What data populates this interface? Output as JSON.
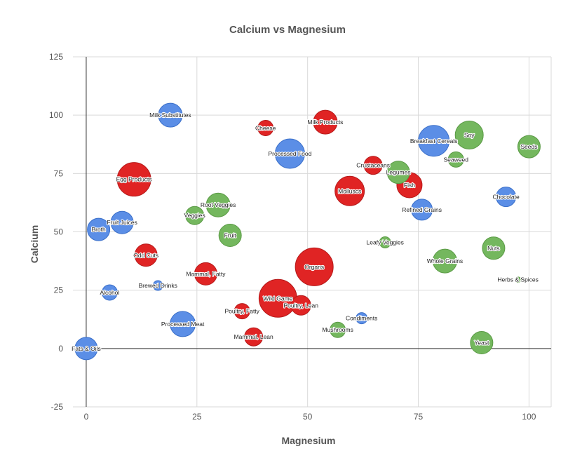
{
  "chart_data": {
    "type": "scatter",
    "variant": "bubble",
    "title": "Calcium vs Magnesium",
    "xlabel": "Magnesium",
    "ylabel": "Calcium",
    "xlim": [
      -3,
      105
    ],
    "ylim": [
      -25,
      125
    ],
    "xticks": [
      0,
      25,
      50,
      75,
      100
    ],
    "yticks": [
      -25,
      0,
      25,
      50,
      75,
      100,
      125
    ],
    "grid": true,
    "legend": "none",
    "colors": {
      "blue": "#5b8ee6",
      "red": "#e02424",
      "green": "#74b75e"
    },
    "points": [
      {
        "label": "Milk Substitutes",
        "x": 19,
        "y": 100,
        "size": 17,
        "color": "blue"
      },
      {
        "label": "Cheese",
        "x": 40.5,
        "y": 94.5,
        "size": 11,
        "color": "red"
      },
      {
        "label": "Milk Products",
        "x": 54,
        "y": 97,
        "size": 17,
        "color": "red"
      },
      {
        "label": "Processed Food",
        "x": 46,
        "y": 83.5,
        "size": 21,
        "color": "blue"
      },
      {
        "label": "Breakfast Cereals",
        "x": 78.5,
        "y": 89,
        "size": 22,
        "color": "blue"
      },
      {
        "label": "Soy",
        "x": 86.5,
        "y": 91.5,
        "size": 20,
        "color": "green"
      },
      {
        "label": "Seeds",
        "x": 100,
        "y": 86.5,
        "size": 16,
        "color": "green"
      },
      {
        "label": "Seaweed",
        "x": 83.5,
        "y": 81,
        "size": 11,
        "color": "green"
      },
      {
        "label": "Crustaceans",
        "x": 64.8,
        "y": 78.5,
        "size": 13,
        "color": "red"
      },
      {
        "label": "Legumes",
        "x": 70.5,
        "y": 75.5,
        "size": 16,
        "color": "green"
      },
      {
        "label": "Fish",
        "x": 73,
        "y": 70,
        "size": 18,
        "color": "red"
      },
      {
        "label": "Egg Products",
        "x": 10.8,
        "y": 72.5,
        "size": 24,
        "color": "red"
      },
      {
        "label": "Molluscs",
        "x": 59.5,
        "y": 67.5,
        "size": 21,
        "color": "red"
      },
      {
        "label": "Chocolate",
        "x": 94.8,
        "y": 65,
        "size": 14,
        "color": "blue"
      },
      {
        "label": "Root Veggies",
        "x": 29.8,
        "y": 61.5,
        "size": 17,
        "color": "green"
      },
      {
        "label": "Refined Grains",
        "x": 75.8,
        "y": 59.5,
        "size": 15,
        "color": "blue"
      },
      {
        "label": "Veggies",
        "x": 24.5,
        "y": 57,
        "size": 13,
        "color": "green"
      },
      {
        "label": "Fruit Juices",
        "x": 8.1,
        "y": 54,
        "size": 16,
        "color": "blue"
      },
      {
        "label": "Broth",
        "x": 2.8,
        "y": 51,
        "size": 16,
        "color": "blue"
      },
      {
        "label": "Fruit",
        "x": 32.5,
        "y": 48.5,
        "size": 16,
        "color": "green"
      },
      {
        "label": "Leafy Veggies",
        "x": 67.5,
        "y": 45.5,
        "size": 8,
        "color": "green"
      },
      {
        "label": "Nuts",
        "x": 92,
        "y": 43,
        "size": 16,
        "color": "green"
      },
      {
        "label": "Odd Cuts",
        "x": 13.5,
        "y": 40,
        "size": 16,
        "color": "red"
      },
      {
        "label": "Whole Grains",
        "x": 81,
        "y": 37.5,
        "size": 17,
        "color": "green"
      },
      {
        "label": "Organs",
        "x": 51.5,
        "y": 35,
        "size": 27,
        "color": "red"
      },
      {
        "label": "Mammal, Fatty",
        "x": 27,
        "y": 32,
        "size": 16,
        "color": "red"
      },
      {
        "label": "Herbs & Spices",
        "x": 97.5,
        "y": 29.5,
        "size": 4,
        "color": "green"
      },
      {
        "label": "Brewed Drinks",
        "x": 16.2,
        "y": 27,
        "size": 7,
        "color": "blue"
      },
      {
        "label": "Alcohol",
        "x": 5.3,
        "y": 24,
        "size": 11,
        "color": "blue"
      },
      {
        "label": "Wild Game",
        "x": 43.3,
        "y": 21.5,
        "size": 27,
        "color": "red"
      },
      {
        "label": "Poultry, Lean",
        "x": 48.5,
        "y": 18.5,
        "size": 14,
        "color": "red"
      },
      {
        "label": "Poultry, Fatty",
        "x": 35.2,
        "y": 16,
        "size": 11,
        "color": "red"
      },
      {
        "label": "Condiments",
        "x": 62.2,
        "y": 13,
        "size": 8,
        "color": "blue"
      },
      {
        "label": "Processed Meat",
        "x": 21.8,
        "y": 10.5,
        "size": 18,
        "color": "blue"
      },
      {
        "label": "Mushrooms",
        "x": 56.8,
        "y": 8,
        "size": 11,
        "color": "green"
      },
      {
        "label": "Mammal, Lean",
        "x": 37.8,
        "y": 5,
        "size": 13,
        "color": "red"
      },
      {
        "label": "Yeast",
        "x": 89.3,
        "y": 2.5,
        "size": 16,
        "color": "green"
      },
      {
        "label": "Fats & Oils",
        "x": 0,
        "y": 0,
        "size": 16,
        "color": "blue"
      }
    ]
  }
}
